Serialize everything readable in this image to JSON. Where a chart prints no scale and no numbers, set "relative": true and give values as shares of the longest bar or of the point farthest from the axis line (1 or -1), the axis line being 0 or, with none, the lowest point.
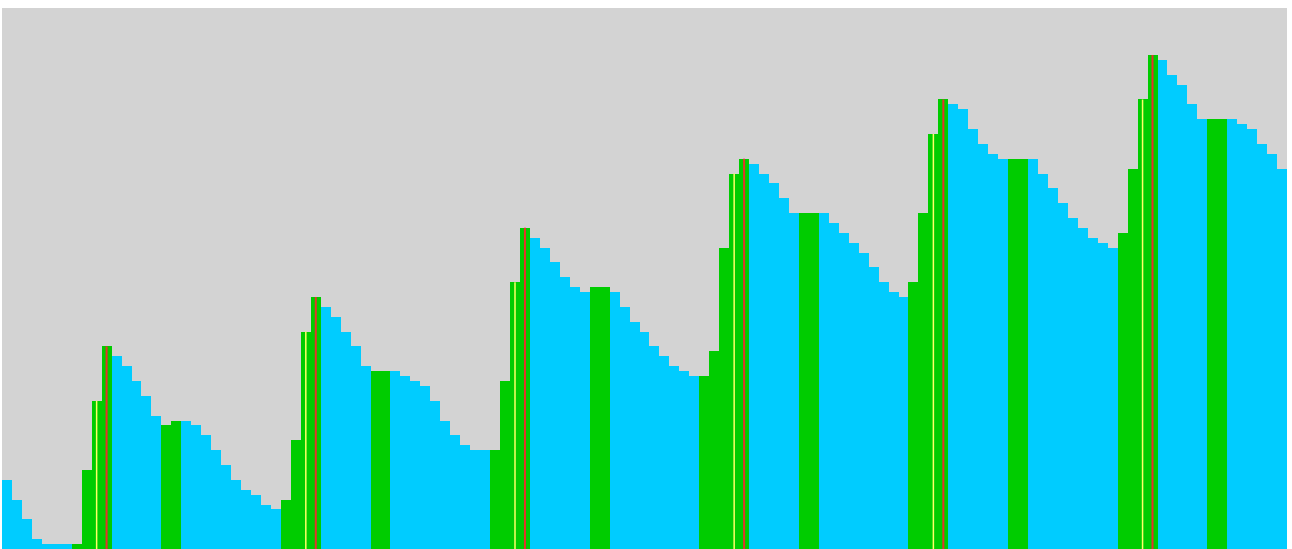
{
  "chart_data": {
    "type": "bar",
    "relative": true,
    "categories": [
      null,
      null,
      null,
      null,
      null,
      null,
      null,
      null,
      null,
      null,
      null,
      null,
      null,
      null,
      null,
      null,
      null,
      null,
      null,
      null,
      null,
      null,
      null,
      null,
      null,
      null,
      null,
      null,
      null,
      null,
      null,
      null,
      null,
      null,
      null,
      null,
      null,
      null,
      null,
      null,
      null,
      null,
      null,
      null,
      null,
      null,
      null,
      null,
      null,
      null,
      null,
      null,
      null,
      null,
      null,
      null,
      null,
      null,
      null,
      null,
      null,
      null,
      null,
      null,
      null,
      null,
      null,
      null,
      null,
      null,
      null,
      null,
      null,
      null,
      null,
      null,
      null,
      null,
      null,
      null,
      null,
      null,
      null,
      null,
      null,
      null,
      null,
      null,
      null,
      null,
      null,
      null,
      null,
      null,
      null,
      null,
      null,
      null,
      null,
      null,
      null,
      null,
      null,
      null,
      null,
      null,
      null,
      null,
      null,
      null,
      null,
      null,
      null,
      null,
      null,
      null,
      null,
      null,
      null,
      null,
      null,
      null,
      null,
      null,
      null,
      null,
      null,
      null,
      null
    ],
    "values": [
      0.14,
      0.1,
      0.06,
      0.02,
      0.01,
      0.01,
      0.01,
      0.01,
      0.16,
      0.3,
      0.41,
      0.39,
      0.37,
      0.34,
      0.31,
      0.27,
      0.25,
      0.26,
      0.26,
      0.25,
      0.23,
      0.2,
      0.17,
      0.14,
      0.12,
      0.11,
      0.09,
      0.08,
      0.1,
      0.22,
      0.44,
      0.51,
      0.49,
      0.47,
      0.44,
      0.41,
      0.37,
      0.36,
      0.36,
      0.36,
      0.35,
      0.34,
      0.33,
      0.3,
      0.26,
      0.23,
      0.21,
      0.2,
      0.2,
      0.2,
      0.34,
      0.54,
      0.65,
      0.63,
      0.61,
      0.58,
      0.55,
      0.53,
      0.52,
      0.53,
      0.53,
      0.52,
      0.49,
      0.46,
      0.44,
      0.41,
      0.39,
      0.37,
      0.36,
      0.35,
      0.35,
      0.4,
      0.61,
      0.76,
      0.79,
      0.78,
      0.76,
      0.74,
      0.71,
      0.68,
      0.68,
      0.68,
      0.68,
      0.66,
      0.64,
      0.62,
      0.6,
      0.57,
      0.54,
      0.52,
      0.51,
      0.54,
      0.68,
      0.84,
      0.91,
      0.9,
      0.89,
      0.85,
      0.82,
      0.8,
      0.79,
      0.79,
      0.79,
      0.79,
      0.76,
      0.73,
      0.7,
      0.67,
      0.65,
      0.63,
      0.62,
      0.61,
      0.64,
      0.77,
      0.91,
      1.0,
      0.99,
      0.96,
      0.94,
      0.9,
      0.87,
      0.87,
      0.87,
      0.87,
      0.86,
      0.85,
      0.82,
      0.8,
      0.77
    ],
    "colors": [
      "#00ccff",
      "#00ccff",
      "#00ccff",
      "#00ccff",
      "#00ccff",
      "#00ccff",
      "#00ccff",
      "#00cc00",
      "#00cc00",
      "#00cc00",
      "#00cc00",
      "#00ccff",
      "#00ccff",
      "#00ccff",
      "#00ccff",
      "#00ccff",
      "#00cc00",
      "#00cc00",
      "#00ccff",
      "#00ccff",
      "#00ccff",
      "#00ccff",
      "#00ccff",
      "#00ccff",
      "#00ccff",
      "#00ccff",
      "#00ccff",
      "#00ccff",
      "#00cc00",
      "#00cc00",
      "#00cc00",
      "#00cc00",
      "#00ccff",
      "#00ccff",
      "#00ccff",
      "#00ccff",
      "#00ccff",
      "#00cc00",
      "#00cc00",
      "#00ccff",
      "#00ccff",
      "#00ccff",
      "#00ccff",
      "#00ccff",
      "#00ccff",
      "#00ccff",
      "#00ccff",
      "#00ccff",
      "#00ccff",
      "#00cc00",
      "#00cc00",
      "#00cc00",
      "#00cc00",
      "#00ccff",
      "#00ccff",
      "#00ccff",
      "#00ccff",
      "#00ccff",
      "#00ccff",
      "#00cc00",
      "#00cc00",
      "#00ccff",
      "#00ccff",
      "#00ccff",
      "#00ccff",
      "#00ccff",
      "#00ccff",
      "#00ccff",
      "#00ccff",
      "#00ccff",
      "#00cc00",
      "#00cc00",
      "#00cc00",
      "#00cc00",
      "#00cc00",
      "#00ccff",
      "#00ccff",
      "#00ccff",
      "#00ccff",
      "#00ccff",
      "#00cc00",
      "#00cc00",
      "#00ccff",
      "#00ccff",
      "#00ccff",
      "#00ccff",
      "#00ccff",
      "#00ccff",
      "#00ccff",
      "#00ccff",
      "#00ccff",
      "#00cc00",
      "#00cc00",
      "#00cc00",
      "#00cc00",
      "#00ccff",
      "#00ccff",
      "#00ccff",
      "#00ccff",
      "#00ccff",
      "#00ccff",
      "#00cc00",
      "#00cc00",
      "#00ccff",
      "#00ccff",
      "#00ccff",
      "#00ccff",
      "#00ccff",
      "#00ccff",
      "#00ccff",
      "#00ccff",
      "#00ccff",
      "#00cc00",
      "#00cc00",
      "#00cc00",
      "#00cc00",
      "#00ccff",
      "#00ccff",
      "#00ccff",
      "#00ccff",
      "#00ccff",
      "#00cc00",
      "#00cc00",
      "#00ccff",
      "#00ccff",
      "#00ccff",
      "#00ccff",
      "#00ccff",
      "#00ccff"
    ]
  }
}
